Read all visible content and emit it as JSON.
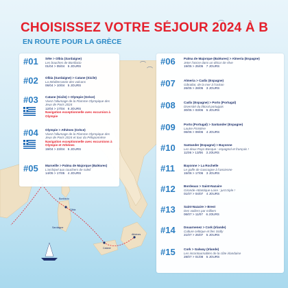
{
  "header": {
    "title": "CHOISISSEZ VOTRE SÉJOUR 2024 À B",
    "subtitle": "EN ROUTE POUR LA GRÈCE"
  },
  "colors": {
    "accent_red": "#e4202c",
    "number_blue": "#2b7ec2",
    "sea": "#a9d9ee"
  },
  "map_labels": [
    "Sète",
    "Bonifacio",
    "Sardaigne",
    "Olbia",
    "Catane",
    "Athènes"
  ],
  "left_stops": [
    {
      "num": "#01",
      "route": "Sète > Olbia (Sardaigne)",
      "desc": "Les bouches de Bonifacio",
      "dates": "01/04 > 05/04",
      "tag": "",
      "nights": "5 JOURS"
    },
    {
      "num": "#02",
      "route": "Olbia (Sardaigne) > Catane (Sicile)",
      "desc": "La Méditerranée des volcans",
      "dates": "06/04 > 10/04",
      "tag": "",
      "nights": "5 JOURS"
    },
    {
      "num": "#03",
      "route": "Catane (Sicile) > Olympie (Grèce)",
      "desc": "Vivez l'allumage de la Flamme Olympique des Jeux de Paris 2024",
      "special": "Navigation exceptionnelle avec excursion à Olympie",
      "dates": "12/04 > 17/04",
      "tag": "",
      "nights": "6 JOURS"
    },
    {
      "num": "#04",
      "route": "Olympie > Athènes (Grèce)",
      "desc": "Vivez l'allumage de la Flamme Olympique des Jeux de Paris 2024 et tour du Péloponnèse",
      "special": "Navigation exceptionnelle avec excursions à Olympie et Athènes",
      "dates": "19/04 > 23/04",
      "tag": "",
      "nights": "5 JOURS"
    },
    {
      "num": "#05",
      "route": "Marseille > Palma de Majorque (Baléares)",
      "desc": "L'archipel aux couchers de soleil",
      "dates": "14/05 > 17/05",
      "tag": "",
      "nights": "4 JOURS"
    }
  ],
  "right_stops": [
    {
      "num": "#06",
      "route": "Palma de Majorque (Baléares) > Almeria (Espagne)",
      "desc": "Jeter l'ancre dans un décor de rêve",
      "dates": "19/05 > 25/05",
      "tag": "",
      "nights": "7 JOURS"
    },
    {
      "num": "#07",
      "route": "Almeria > Cadix (Espagne)",
      "desc": "Gibraltar, de la mer à l'océan",
      "dates": "26/05 > 28/05",
      "tag": "",
      "nights": "3 JOURS"
    },
    {
      "num": "#08",
      "route": "Cadix (Espagne) > Porto (Portugal)",
      "desc": "Diversité du littoral portugais",
      "dates": "30/05 > 03/06",
      "tag": "",
      "nights": "5 JOURS"
    },
    {
      "num": "#09",
      "route": "Porto (Portugal) > Santander (Espagne)",
      "desc": "Lautre Finistère",
      "dates": "06/06 > 09/06",
      "tag": "",
      "nights": "4 JOURS"
    },
    {
      "num": "#10",
      "route": "Santander (Espagne) > Bayonne",
      "desc": "Les deux Pays-Basque : espagnol et français !",
      "dates": "11/06 > 13/06",
      "tag": "",
      "nights": "3 JOURS"
    },
    {
      "num": "#11",
      "route": "Bayonne > La Rochelle",
      "desc": "Le golfe de Gascogne à l'ancienne",
      "dates": "15/06 > 17/06",
      "tag": "",
      "nights": "3 JOURS"
    },
    {
      "num": "#12",
      "route": "Bordeaux > Saint-Nazaire",
      "desc": "Gironde-Atlantique-Loire : just triple !",
      "dates": "01/07 > 04/07",
      "tag": "",
      "nights": "4 JOURS"
    },
    {
      "num": "#13",
      "route": "Saint-Nazaire > Brest",
      "desc": "Des voiliers par milliers",
      "dates": "06/07 > 11/07",
      "tag": "",
      "nights": "6 JOURS"
    },
    {
      "num": "#14",
      "route": "Douarnenez > Cork (Irlande)",
      "desc": "Culture celtique et îles Scilly",
      "dates": "21/07 > 25/07",
      "tag": "",
      "nights": "5 JOURS"
    },
    {
      "num": "#15",
      "route": "Cork > Galway (Irlande)",
      "desc": "Les incontournables de la côte irlandaise",
      "dates": "28/07 > 01/08",
      "tag": "",
      "nights": "5 JOURS"
    }
  ]
}
